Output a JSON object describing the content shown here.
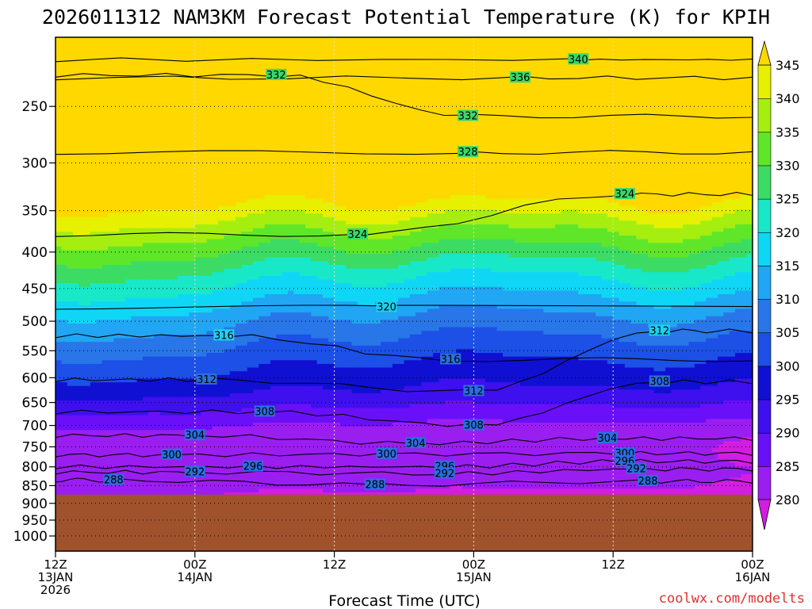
{
  "chart_data": {
    "type": "heatmap",
    "title": "2026011312 NAM3KM Forecast Potential Temperature (K) for KPIH",
    "xlabel": "Forecast Time (UTC)",
    "ylabel": "",
    "credit": "coolwx.com/modelts",
    "x_ticks": [
      {
        "hours": 0,
        "line1": "12Z",
        "line2": "13JAN",
        "line3": "2026"
      },
      {
        "hours": 12,
        "line1": "00Z",
        "line2": "14JAN",
        "line3": ""
      },
      {
        "hours": 24,
        "line1": "12Z",
        "line2": "",
        "line3": ""
      },
      {
        "hours": 36,
        "line1": "00Z",
        "line2": "15JAN",
        "line3": ""
      },
      {
        "hours": 48,
        "line1": "12Z",
        "line2": "",
        "line3": ""
      },
      {
        "hours": 60,
        "line1": "00Z",
        "line2": "16JAN",
        "line3": ""
      }
    ],
    "xlim_hours": [
      0,
      60
    ],
    "y_ticks": [
      250,
      300,
      350,
      400,
      450,
      500,
      550,
      600,
      650,
      700,
      750,
      800,
      850,
      900,
      950,
      1000
    ],
    "ylim_hpa": [
      1050,
      200
    ],
    "y_scale": "log",
    "ground_pressure_hpa": 875,
    "grid": true,
    "colorbar": {
      "levels": [
        280,
        285,
        290,
        295,
        300,
        305,
        310,
        315,
        320,
        325,
        330,
        335,
        340,
        345
      ],
      "colors": [
        "#d21ee0",
        "#9b1ef0",
        "#6a10f8",
        "#3e10ee",
        "#1010d2",
        "#1c50e6",
        "#2876e8",
        "#20a6f2",
        "#10d6f6",
        "#18e8c8",
        "#3cdc64",
        "#60e628",
        "#a6ee10",
        "#e6f000",
        "#ffd800"
      ],
      "ground_color": "#a0522d"
    },
    "contour_labels": [
      {
        "value": "340",
        "hours": 45.0,
        "hpa": 215
      },
      {
        "value": "336",
        "hours": 40.0,
        "hpa": 228
      },
      {
        "value": "332",
        "hours": 19.0,
        "hpa": 226
      },
      {
        "value": "332",
        "hours": 35.5,
        "hpa": 258
      },
      {
        "value": "328",
        "hours": 35.5,
        "hpa": 290
      },
      {
        "value": "324",
        "hours": 49.0,
        "hpa": 332
      },
      {
        "value": "324",
        "hours": 26.0,
        "hpa": 378
      },
      {
        "value": "320",
        "hours": 28.5,
        "hpa": 478
      },
      {
        "value": "316",
        "hours": 14.5,
        "hpa": 524
      },
      {
        "value": "316",
        "hours": 34.0,
        "hpa": 566
      },
      {
        "value": "312",
        "hours": 52.0,
        "hpa": 516
      },
      {
        "value": "312",
        "hours": 13.0,
        "hpa": 604
      },
      {
        "value": "312",
        "hours": 36.0,
        "hpa": 627
      },
      {
        "value": "308",
        "hours": 52.0,
        "hpa": 608
      },
      {
        "value": "308",
        "hours": 18.0,
        "hpa": 670
      },
      {
        "value": "308",
        "hours": 36.0,
        "hpa": 700
      },
      {
        "value": "304",
        "hours": 12.0,
        "hpa": 723
      },
      {
        "value": "304",
        "hours": 31.0,
        "hpa": 742
      },
      {
        "value": "304",
        "hours": 47.5,
        "hpa": 730
      },
      {
        "value": "300",
        "hours": 10.0,
        "hpa": 770
      },
      {
        "value": "300",
        "hours": 28.5,
        "hpa": 768
      },
      {
        "value": "300",
        "hours": 49.0,
        "hpa": 766
      },
      {
        "value": "296",
        "hours": 17.0,
        "hpa": 800
      },
      {
        "value": "296",
        "hours": 33.5,
        "hpa": 800
      },
      {
        "value": "296",
        "hours": 49.0,
        "hpa": 786
      },
      {
        "value": "292",
        "hours": 12.0,
        "hpa": 814
      },
      {
        "value": "292",
        "hours": 33.5,
        "hpa": 818
      },
      {
        "value": "292",
        "hours": 50.0,
        "hpa": 806
      },
      {
        "value": "288",
        "hours": 5.0,
        "hpa": 835
      },
      {
        "value": "288",
        "hours": 27.5,
        "hpa": 848
      },
      {
        "value": "288",
        "hours": 51.0,
        "hpa": 838
      }
    ]
  }
}
